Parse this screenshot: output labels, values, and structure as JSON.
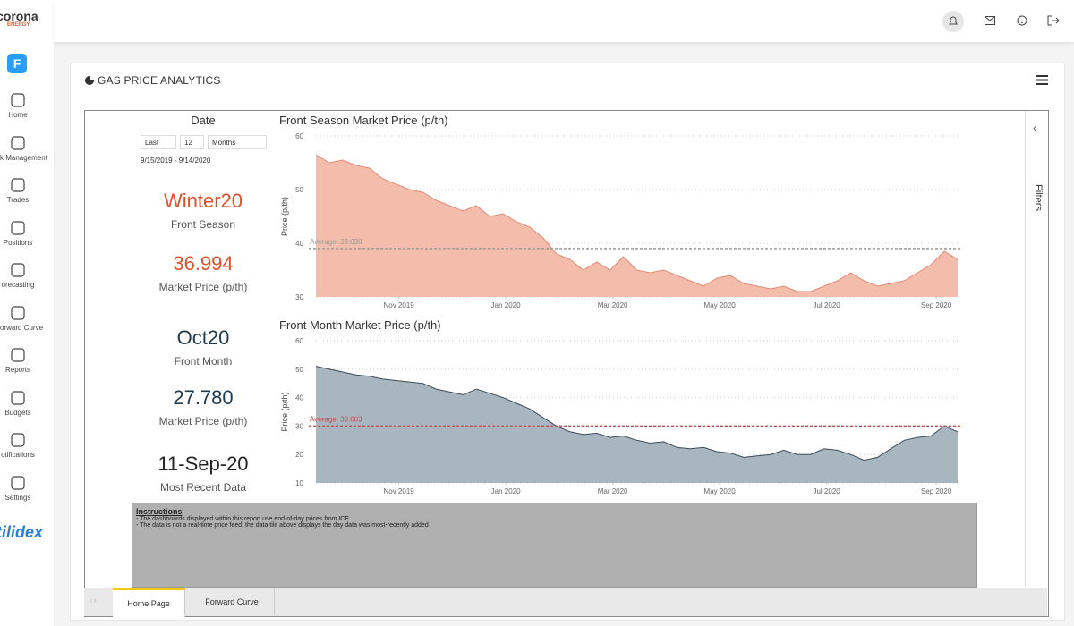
{
  "sidebar": {
    "logo": "corona",
    "logo_sub": "ENERGY",
    "app_icon": "F",
    "items": [
      "Home",
      "k Management",
      "Trades",
      "Positions",
      "orecasting",
      "orward Curve",
      "Reports",
      "Budgets",
      "otifications",
      "Settings"
    ],
    "brand": "tilidex"
  },
  "header": {
    "title": "GAS PRICE ANALYTICS"
  },
  "date_filter": {
    "heading": "Date",
    "period": "Last",
    "count": "12",
    "unit": "Months",
    "range": "9/15/2019 - 9/14/2020"
  },
  "kpis": [
    {
      "value": "Winter20",
      "label": "Front Season"
    },
    {
      "value": "36.994",
      "label": "Market Price (p/th)"
    },
    {
      "value": "Oct20",
      "label": "Front Month"
    },
    {
      "value": "27.780",
      "label": "Market Price (p/th)"
    },
    {
      "value": "11-Sep-20",
      "label": "Most Recent Data"
    }
  ],
  "chart_data": [
    {
      "type": "area",
      "title": "Front Season Market Price (p/th)",
      "y_label": "Price (p/th)",
      "color": "#f4bcab",
      "line_color": "#e58a72",
      "x": [
        0,
        0.25,
        0.5,
        0.75,
        1,
        1.25,
        1.5,
        1.75,
        2,
        2.25,
        2.5,
        2.75,
        3,
        3.25,
        3.5,
        3.75,
        4,
        4.25,
        4.5,
        4.75,
        5,
        5.25,
        5.5,
        5.75,
        6,
        6.25,
        6.5,
        6.75,
        7,
        7.25,
        7.5,
        7.75,
        8,
        8.25,
        8.5,
        8.75,
        9,
        9.25,
        9.5,
        9.75,
        10,
        10.25,
        10.5,
        10.75,
        11,
        11.25,
        11.5,
        11.75,
        12
      ],
      "values": [
        56.5,
        55,
        55.5,
        54.5,
        54,
        52,
        51,
        50,
        49.5,
        48,
        47,
        46,
        47,
        45,
        45.5,
        44,
        43,
        41,
        38,
        37,
        35,
        36.5,
        35,
        37.5,
        35,
        34.5,
        35,
        34,
        33,
        32,
        33.5,
        34,
        32.5,
        32,
        31.5,
        32,
        31,
        31,
        32,
        33,
        34.5,
        33,
        32,
        32.5,
        33,
        34.5,
        36,
        38.5,
        37
      ],
      "xlim": [
        0,
        12
      ],
      "ylim": [
        30,
        60
      ],
      "yticks": [
        30,
        40,
        50,
        60
      ],
      "xticks": [
        {
          "value": 1.55,
          "label": "Nov 2019"
        },
        {
          "value": 3.55,
          "label": "Jan 2020"
        },
        {
          "value": 5.55,
          "label": "Mar 2020"
        },
        {
          "value": 7.55,
          "label": "May 2020"
        },
        {
          "value": 9.55,
          "label": "Jul 2020"
        },
        {
          "value": 11.6,
          "label": "Sep 2020"
        }
      ],
      "average": {
        "value": 39.03,
        "label": "Average: 39.030",
        "color": "#9a9a9a"
      },
      "grid": true
    },
    {
      "type": "area",
      "title": "Front Month Market Price (p/th)",
      "y_label": "Price (p/th)",
      "color": "#a8b6c0",
      "line_color": "#3c4d5a",
      "x": [
        0,
        0.25,
        0.5,
        0.75,
        1,
        1.25,
        1.5,
        1.75,
        2,
        2.25,
        2.5,
        2.75,
        3,
        3.25,
        3.5,
        3.75,
        4,
        4.25,
        4.5,
        4.75,
        5,
        5.25,
        5.5,
        5.75,
        6,
        6.25,
        6.5,
        6.75,
        7,
        7.25,
        7.5,
        7.75,
        8,
        8.25,
        8.5,
        8.75,
        9,
        9.25,
        9.5,
        9.75,
        10,
        10.25,
        10.5,
        10.75,
        11,
        11.25,
        11.5,
        11.75,
        12
      ],
      "values": [
        51,
        50,
        49,
        48,
        47.5,
        46.5,
        46,
        45.5,
        45,
        43,
        42,
        41,
        43,
        41.5,
        40,
        38,
        36,
        33,
        30,
        28,
        27,
        27.5,
        26,
        26.5,
        25,
        24,
        24.5,
        22.5,
        22,
        22.5,
        21,
        20.5,
        19,
        19.5,
        20,
        21.5,
        20,
        20,
        22,
        21.5,
        20,
        18,
        19,
        22,
        25,
        26,
        26.5,
        30,
        28
      ],
      "xlim": [
        0,
        12
      ],
      "ylim": [
        10,
        60
      ],
      "yticks": [
        10,
        20,
        30,
        40,
        50,
        60
      ],
      "xticks": [
        {
          "value": 1.55,
          "label": "Nov 2019"
        },
        {
          "value": 3.55,
          "label": "Jan 2020"
        },
        {
          "value": 5.55,
          "label": "Mar 2020"
        },
        {
          "value": 7.55,
          "label": "May 2020"
        },
        {
          "value": 9.55,
          "label": "Jul 2020"
        },
        {
          "value": 11.6,
          "label": "Sep 2020"
        }
      ],
      "average": {
        "value": 30.003,
        "label": "Average: 30.003",
        "color": "#c0504d"
      },
      "grid": true
    }
  ],
  "instructions": {
    "title": "Instructions",
    "lines": [
      "- The dashboards displayed within this report use end-of-day prices from ICE",
      "- The data is not a real-time price feed, the data tile above displays the day data was most-recently added"
    ]
  },
  "filters_pane": "Filters",
  "tabs": [
    "Home Page",
    "Forward Curve"
  ]
}
